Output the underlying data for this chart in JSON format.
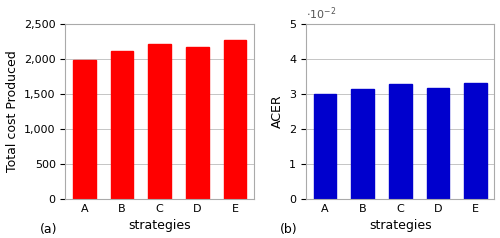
{
  "categories": [
    "A",
    "B",
    "C",
    "D",
    "E"
  ],
  "cost_values": [
    1990,
    2110,
    2210,
    2170,
    2270
  ],
  "acer_values": [
    0.0299,
    0.0314,
    0.033,
    0.0316,
    0.0332
  ],
  "bar_color_red": "#ff0000",
  "bar_color_blue": "#0000cd",
  "xlabel": "strategies",
  "ylabel_left": "Total cost Produced",
  "ylabel_right": "ACER",
  "ylim_left": [
    0,
    2500
  ],
  "ylim_right": [
    0,
    0.05
  ],
  "label_a": "(a)",
  "label_b": "(b)",
  "yticks_left": [
    0,
    500,
    1000,
    1500,
    2000,
    2500
  ],
  "yticks_right": [
    0,
    1,
    2,
    3,
    4,
    5
  ],
  "grid_color": "#bbbbbb",
  "tick_fontsize": 8,
  "label_fontsize": 9,
  "subfig_label_fontsize": 9
}
